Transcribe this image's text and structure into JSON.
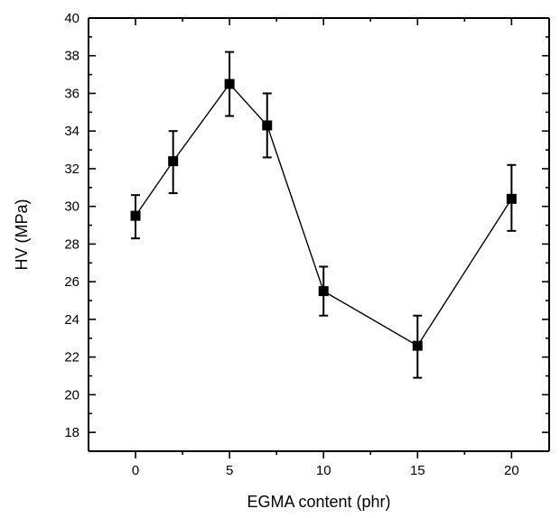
{
  "chart_data": {
    "type": "line",
    "title": "",
    "xlabel": "EGMA content (phr)",
    "ylabel": "HV (MPa)",
    "xlim": [
      -2.5,
      22
    ],
    "ylim": [
      17,
      40
    ],
    "x_ticks": [
      0,
      5,
      10,
      15,
      20
    ],
    "y_ticks": [
      18,
      20,
      22,
      24,
      26,
      28,
      30,
      32,
      34,
      36,
      38,
      40
    ],
    "grid": false,
    "legend": "none",
    "series": [
      {
        "x": [
          0,
          2,
          5,
          7,
          10,
          15,
          20
        ],
        "y": [
          29.5,
          32.4,
          36.5,
          34.3,
          25.5,
          22.6,
          30.4
        ],
        "y_err_low": [
          28.3,
          30.7,
          34.8,
          32.6,
          24.2,
          20.9,
          28.7
        ],
        "y_err_high": [
          30.6,
          34.0,
          38.2,
          36.0,
          26.8,
          24.2,
          32.2
        ],
        "marker": "square",
        "color": "#000000"
      }
    ]
  }
}
